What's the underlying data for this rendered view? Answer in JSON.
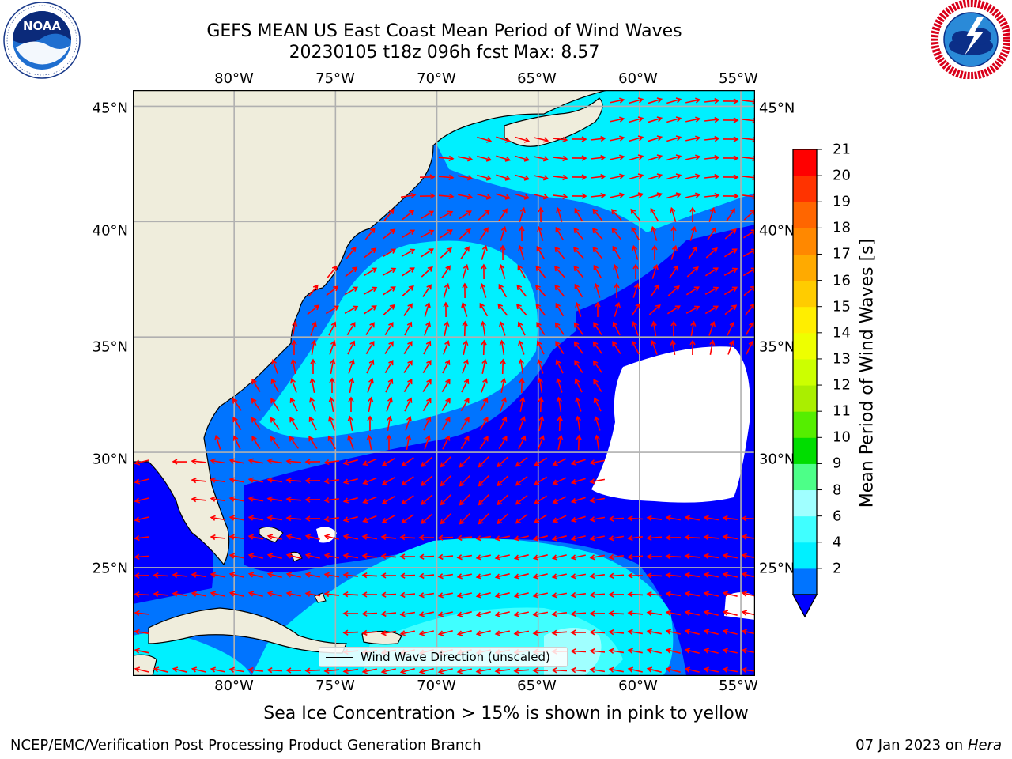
{
  "header": {
    "title": "GEFS MEAN US East Coast Mean Period of Wind Waves",
    "subtitle": "20230105 t18z 096h fcst   Max: 8.57"
  },
  "logos": {
    "left": {
      "name": "NOAA",
      "ring_text": "NATIONAL OCEANIC AND ATMOSPHERIC ADMINISTRATION · U.S. DEPARTMENT OF COMMERCE"
    },
    "right": {
      "name": "NATIONAL WEATHER SERVICE"
    }
  },
  "map": {
    "lon_labels": [
      "80°W",
      "75°W",
      "70°W",
      "65°W",
      "60°W",
      "55°W"
    ],
    "lat_labels": [
      "45°N",
      "40°N",
      "35°N",
      "30°N",
      "25°N"
    ],
    "lon_range": [
      -85,
      -54.3
    ],
    "lat_range": [
      20.3,
      45.7
    ],
    "grid": true,
    "colors": {
      "land": "#efeddc",
      "gridline": "#b0b0b0",
      "arrow": "#ff0000",
      "blank": "#ffffff"
    }
  },
  "legend": {
    "label": "Wind Wave Direction (unscaled)"
  },
  "colorbar": {
    "label": "Mean Period of Wind Waves [s]",
    "ticks": [
      "21",
      "20",
      "19",
      "18",
      "17",
      "16",
      "15",
      "14",
      "13",
      "12",
      "11",
      "10",
      "9",
      "8",
      "6",
      "4",
      "2"
    ],
    "extend": "min",
    "colors_bottom_to_top": [
      "#0074ff",
      "#00f0ff",
      "#40ffff",
      "#a0ffff",
      "#4dff88",
      "#00dd00",
      "#55ee00",
      "#aaee00",
      "#ccff00",
      "#eeff00",
      "#ffee00",
      "#ffcc00",
      "#ffaa00",
      "#ff8800",
      "#ff6600",
      "#ff3300",
      "#ff0000"
    ],
    "under_color": "#0000ff"
  },
  "note": "Sea Ice Concentration > 15% is shown in pink to yellow",
  "footer": {
    "left": "NCEP/EMC/Verification Post Processing Product Generation Branch",
    "right_date": "07 Jan 2023 on",
    "right_machine": "Hera"
  }
}
